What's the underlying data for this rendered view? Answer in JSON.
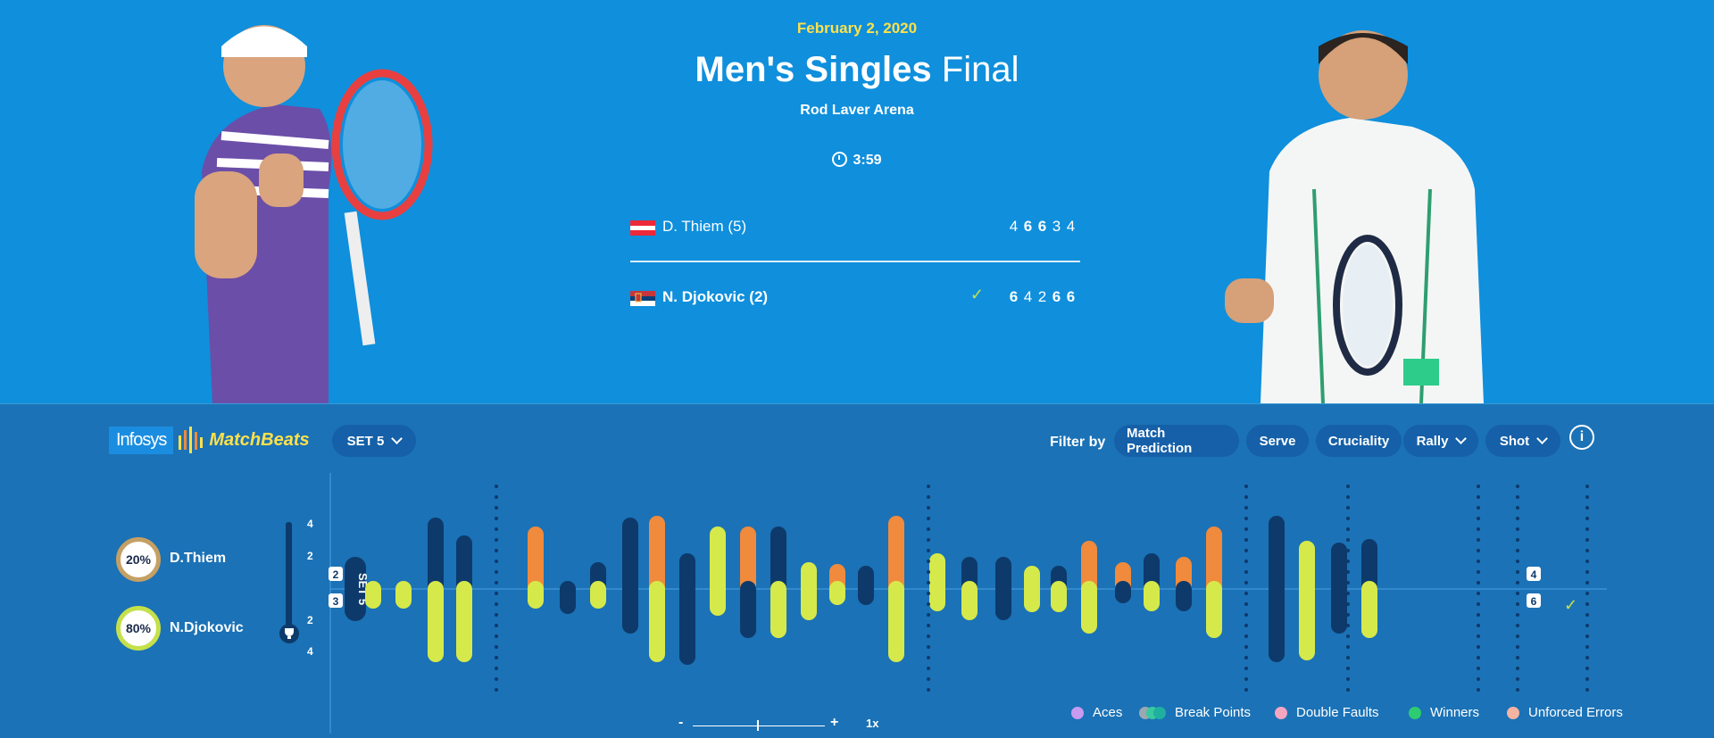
{
  "header": {
    "date": "February 2, 2020",
    "title_bold": "Men's Singles",
    "title_rest": " Final",
    "venue": "Rod Laver Arena",
    "duration": "3:59"
  },
  "players": [
    {
      "name": "D. Thiem (5)",
      "flag": "austria",
      "sets": [
        "4",
        "6",
        "6",
        "3",
        "4"
      ],
      "won_sets": [
        1,
        2
      ],
      "winner": false
    },
    {
      "name": "N. Djokovic (2)",
      "flag": "serbia",
      "sets": [
        "6",
        "4",
        "2",
        "6",
        "6"
      ],
      "won_sets": [
        0,
        3,
        4
      ],
      "winner": true
    }
  ],
  "toolbar": {
    "logo_infosys": "Infosys",
    "logo_matchbeats": "MatchBeats",
    "set_select": "SET 5",
    "filter_label": "Filter by",
    "filters": [
      {
        "label": "Match Prediction",
        "dropdown": false
      },
      {
        "label": "Serve",
        "dropdown": false
      },
      {
        "label": "Cruciality",
        "dropdown": false
      },
      {
        "label": "Rally",
        "dropdown": true
      },
      {
        "label": "Shot",
        "dropdown": true
      }
    ],
    "info_icon": "info-icon"
  },
  "prediction": {
    "p1_pct": "20%",
    "p1_name": "D.Thiem",
    "p2_pct": "80%",
    "p2_name": "N.Djokovic",
    "scale_top": [
      "4",
      "2"
    ],
    "scale_bottom": [
      "2",
      "4"
    ]
  },
  "timeline": {
    "set_label": "SET 5",
    "start_games": {
      "p1": "2",
      "p2": "3"
    },
    "end_games": {
      "p1": "4",
      "p2": "6"
    }
  },
  "legend": [
    {
      "label": "Aces",
      "color": "#c79bf0"
    },
    {
      "label": "Break Points",
      "color": "#38c9a0"
    },
    {
      "label": "Double Faults",
      "color": "#f4a6c0"
    },
    {
      "label": "Winners",
      "color": "#2ecc71"
    },
    {
      "label": "Unforced Errors",
      "color": "#f4b4a0"
    }
  ],
  "zoom": {
    "minus": "-",
    "plus": "+",
    "level": "1x"
  },
  "colors": {
    "hero_bg": "#0f8fdc",
    "panel_bg": "#1b72b6",
    "orange": "#f08a3c",
    "lime": "#d6e94a",
    "navy": "#0d3a6b",
    "yellow": "#ffe14a"
  }
}
